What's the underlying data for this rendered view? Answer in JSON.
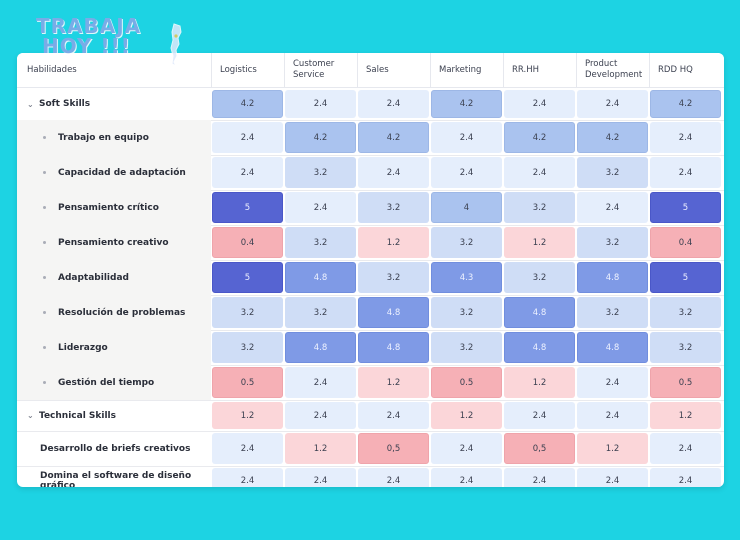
{
  "logo": {
    "line1": "TRABAJA",
    "line2": "HOY !!!"
  },
  "columns": [
    "Habilidades",
    "Logistics",
    "Customer Service",
    "Sales",
    "Marketing",
    "RR.HH",
    "Product Development",
    "RDD HQ"
  ],
  "rows": [
    {
      "label": "Soft Skills",
      "kind": "group",
      "values": [
        "4.2",
        "2.4",
        "2.4",
        "4.2",
        "2.4",
        "2.4",
        "4.2"
      ]
    },
    {
      "label": "Trabajo en equipo",
      "kind": "skill",
      "values": [
        "2.4",
        "4.2",
        "4.2",
        "2.4",
        "4.2",
        "4.2",
        "2.4"
      ]
    },
    {
      "label": "Capacidad de adaptación",
      "kind": "skill",
      "values": [
        "2.4",
        "3.2",
        "2.4",
        "2.4",
        "2.4",
        "3.2",
        "2.4"
      ]
    },
    {
      "label": "Pensamiento crítico",
      "kind": "skill",
      "values": [
        "5",
        "2.4",
        "3.2",
        "4",
        "3.2",
        "2.4",
        "5"
      ]
    },
    {
      "label": "Pensamiento creativo",
      "kind": "skill",
      "values": [
        "0.4",
        "3.2",
        "1.2",
        "3.2",
        "1.2",
        "3.2",
        "0.4"
      ]
    },
    {
      "label": "Adaptabilidad",
      "kind": "skill",
      "values": [
        "5",
        "4.8",
        "3.2",
        "4.3",
        "3.2",
        "4.8",
        "5"
      ]
    },
    {
      "label": "Resolución de problemas",
      "kind": "skill",
      "values": [
        "3.2",
        "3.2",
        "4.8",
        "3.2",
        "4.8",
        "3.2",
        "3.2"
      ]
    },
    {
      "label": "Liderazgo",
      "kind": "skill",
      "values": [
        "3.2",
        "4.8",
        "4.8",
        "3.2",
        "4.8",
        "4.8",
        "3.2"
      ]
    },
    {
      "label": "Gestión del tiempo",
      "kind": "skill",
      "values": [
        "0.5",
        "2.4",
        "1.2",
        "0.5",
        "1.2",
        "2.4",
        "0.5"
      ]
    },
    {
      "label": "Technical Skills",
      "kind": "group",
      "values": [
        "1.2",
        "2.4",
        "2.4",
        "1.2",
        "2.4",
        "2.4",
        "1.2"
      ]
    },
    {
      "label": "Desarrollo de briefs creativos",
      "kind": "plain",
      "values": [
        "2.4",
        "1.2",
        "0,5",
        "2.4",
        "0,5",
        "1.2",
        "2.4"
      ]
    },
    {
      "label": "Domina el software de diseño gráfico",
      "kind": "plain",
      "values": [
        "2.4",
        "2.4",
        "2.4",
        "2.4",
        "2.4",
        "2.4",
        "2.4"
      ]
    }
  ],
  "scale_colors": {
    "very_low": "#f6b0b6",
    "low": "#fbd6d9",
    "base": "#e5eefc",
    "mid": "#cfddf6",
    "high": "#aac3ef",
    "very_high": "#7f9ae6",
    "max": "#5664d2"
  },
  "icons": {
    "group_toggle": "chevron-down-icon",
    "skill_bullet": "bullet-icon"
  }
}
